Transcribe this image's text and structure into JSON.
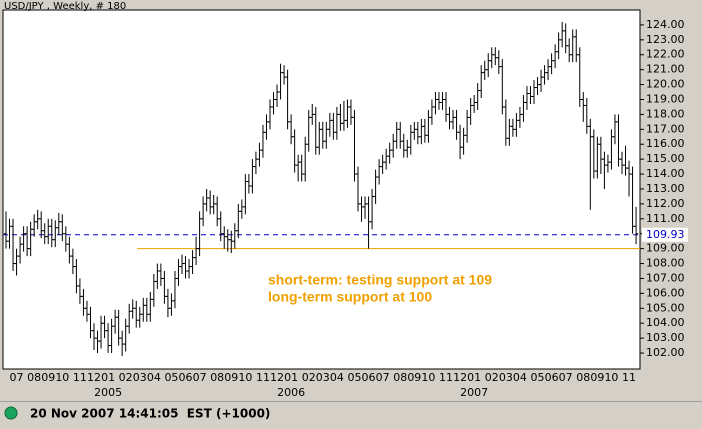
{
  "chart_data": {
    "type": "ohlc",
    "title": "USD/JPY , Weekly, # 180",
    "color": "#000000",
    "categories": [
      null,
      null,
      null,
      "07",
      null,
      null,
      null,
      null,
      "08",
      null,
      null,
      null,
      "09",
      null,
      null,
      null,
      "10",
      null,
      null,
      null,
      null,
      "11",
      null,
      null,
      null,
      "12",
      null,
      null,
      null,
      "01",
      null,
      null,
      null,
      null,
      "02",
      null,
      null,
      null,
      "03",
      null,
      null,
      null,
      "04",
      null,
      null,
      null,
      null,
      "05",
      null,
      null,
      null,
      "06",
      null,
      null,
      null,
      "07",
      null,
      null,
      null,
      null,
      "08",
      null,
      null,
      null,
      "09",
      null,
      null,
      null,
      "10",
      null,
      null,
      null,
      null,
      "11",
      null,
      null,
      null,
      "12",
      null,
      null,
      null,
      "01",
      null,
      null,
      null,
      null,
      "02",
      null,
      null,
      null,
      "03",
      null,
      null,
      null,
      "04",
      null,
      null,
      null,
      null,
      "05",
      null,
      null,
      null,
      "06",
      null,
      null,
      null,
      "07",
      null,
      null,
      null,
      null,
      "08",
      null,
      null,
      null,
      "09",
      null,
      null,
      null,
      "10",
      null,
      null,
      null,
      null,
      "11",
      null,
      null,
      null,
      "12",
      null,
      null,
      null,
      "01",
      null,
      null,
      null,
      null,
      "02",
      null,
      null,
      null,
      "03",
      null,
      null,
      null,
      "04",
      null,
      null,
      null,
      null,
      "05",
      null,
      null,
      null,
      "06",
      null,
      null,
      null,
      "07",
      null,
      null,
      null,
      null,
      "08",
      null,
      null,
      null,
      "09",
      null,
      null,
      null,
      "10",
      null,
      null,
      null,
      null,
      "11",
      null,
      null
    ],
    "years": [
      null,
      null,
      null,
      null,
      null,
      null,
      null,
      null,
      null,
      null,
      null,
      null,
      null,
      null,
      null,
      null,
      null,
      null,
      null,
      null,
      null,
      null,
      null,
      null,
      null,
      null,
      null,
      null,
      null,
      "2005",
      null,
      null,
      null,
      null,
      null,
      null,
      null,
      null,
      null,
      null,
      null,
      null,
      null,
      null,
      null,
      null,
      null,
      null,
      null,
      null,
      null,
      null,
      null,
      null,
      null,
      null,
      null,
      null,
      null,
      null,
      null,
      null,
      null,
      null,
      null,
      null,
      null,
      null,
      null,
      null,
      null,
      null,
      null,
      null,
      null,
      null,
      null,
      null,
      null,
      null,
      null,
      "2006",
      null,
      null,
      null,
      null,
      null,
      null,
      null,
      null,
      null,
      null,
      null,
      null,
      null,
      null,
      null,
      null,
      null,
      null,
      null,
      null,
      null,
      null,
      null,
      null,
      null,
      null,
      null,
      null,
      null,
      null,
      null,
      null,
      null,
      null,
      null,
      null,
      null,
      null,
      null,
      null,
      null,
      null,
      null,
      null,
      null,
      null,
      null,
      null,
      null,
      null,
      null,
      "2007",
      null,
      null,
      null,
      null,
      null,
      null,
      null,
      null,
      null,
      null,
      null,
      null,
      null,
      null,
      null,
      null,
      null,
      null,
      null,
      null,
      null,
      null,
      null,
      null,
      null,
      null,
      null,
      null,
      null,
      null,
      null,
      null,
      null,
      null,
      null,
      null,
      null,
      null,
      null,
      null,
      null,
      null,
      null,
      null,
      null,
      null
    ],
    "open": [
      110.0,
      109.5,
      110.5,
      108.0,
      108.5,
      109.3,
      110.0,
      109.0,
      110.3,
      110.8,
      111.0,
      110.2,
      109.8,
      110.5,
      109.6,
      110.4,
      110.8,
      110.0,
      109.3,
      108.5,
      107.8,
      106.5,
      105.8,
      105.0,
      104.6,
      103.5,
      103.0,
      102.8,
      104.0,
      103.5,
      102.5,
      103.8,
      104.4,
      103.0,
      102.6,
      103.8,
      104.8,
      105.0,
      104.2,
      104.6,
      105.2,
      104.6,
      105.6,
      106.8,
      107.5,
      107.0,
      105.8,
      105.0,
      105.5,
      107.0,
      107.8,
      108.0,
      107.5,
      107.8,
      108.4,
      109.0,
      111.0,
      112.0,
      112.4,
      111.8,
      112.0,
      111.0,
      110.0,
      109.8,
      109.6,
      109.5,
      110.2,
      111.5,
      111.8,
      113.5,
      113.2,
      114.5,
      115.0,
      115.6,
      116.8,
      117.5,
      118.5,
      119.0,
      119.5,
      120.8,
      120.5,
      117.5,
      116.5,
      114.6,
      114.8,
      114.0,
      116.0,
      117.8,
      118.0,
      115.8,
      117.0,
      116.2,
      117.0,
      117.6,
      116.8,
      118.0,
      117.4,
      117.6,
      118.5,
      117.8,
      114.0,
      112.0,
      111.8,
      112.0,
      110.8,
      112.5,
      113.8,
      114.5,
      114.8,
      115.2,
      115.6,
      116.2,
      117.0,
      116.2,
      115.6,
      115.8,
      116.8,
      117.0,
      116.5,
      117.2,
      116.6,
      117.8,
      118.5,
      119.0,
      118.8,
      119.0,
      118.0,
      117.5,
      117.8,
      116.8,
      115.8,
      116.6,
      117.8,
      118.6,
      118.8,
      119.6,
      120.8,
      121.0,
      121.6,
      122.0,
      121.8,
      121.2,
      118.5,
      116.4,
      117.2,
      117.0,
      117.6,
      118.0,
      118.8,
      119.4,
      119.2,
      119.8,
      120.0,
      120.5,
      120.8,
      121.2,
      121.6,
      122.2,
      123.0,
      123.6,
      122.6,
      122.0,
      123.2,
      122.0,
      119.0,
      118.6,
      117.2,
      116.5,
      114.2,
      116.0,
      115.0,
      114.6,
      114.8,
      116.5,
      117.5,
      115.0,
      114.6,
      114.4,
      114.0,
      110.5
    ],
    "high": [
      111.5,
      111.0,
      111.0,
      109.0,
      109.8,
      110.5,
      110.5,
      110.8,
      111.3,
      111.6,
      111.5,
      110.7,
      111.0,
      111.0,
      110.9,
      111.4,
      111.3,
      110.5,
      109.8,
      109.0,
      108.3,
      107.0,
      106.3,
      105.5,
      105.1,
      104.0,
      103.5,
      104.5,
      104.5,
      104.0,
      104.3,
      104.9,
      104.9,
      103.5,
      104.3,
      105.3,
      105.6,
      105.5,
      105.1,
      105.7,
      105.7,
      106.1,
      107.3,
      108.0,
      108.0,
      107.5,
      106.3,
      106.0,
      107.5,
      108.3,
      108.6,
      108.5,
      108.3,
      108.9,
      109.8,
      111.5,
      112.5,
      113.0,
      112.9,
      112.6,
      112.5,
      111.5,
      110.5,
      110.3,
      110.2,
      110.7,
      112.0,
      112.3,
      114.0,
      114.0,
      115.0,
      115.5,
      116.1,
      117.3,
      118.0,
      119.0,
      119.5,
      120.0,
      121.4,
      121.3,
      121.0,
      118.0,
      117.0,
      115.3,
      115.3,
      116.5,
      118.3,
      118.7,
      118.5,
      117.5,
      117.5,
      117.5,
      118.1,
      118.1,
      118.5,
      118.7,
      118.9,
      119.0,
      119.0,
      118.3,
      114.5,
      112.5,
      112.5,
      112.5,
      113.0,
      114.3,
      115.0,
      115.3,
      115.7,
      116.1,
      116.7,
      117.5,
      117.5,
      116.7,
      116.3,
      117.3,
      117.5,
      117.5,
      117.7,
      117.7,
      118.3,
      119.0,
      119.5,
      119.5,
      119.5,
      119.5,
      118.5,
      118.3,
      118.3,
      117.3,
      117.1,
      118.3,
      119.1,
      119.3,
      120.1,
      121.3,
      121.6,
      122.1,
      122.5,
      122.5,
      122.3,
      121.7,
      119.0,
      117.7,
      117.7,
      118.1,
      118.5,
      119.3,
      119.9,
      119.9,
      120.3,
      120.5,
      121.0,
      121.3,
      121.7,
      122.1,
      122.7,
      123.5,
      124.2,
      124.1,
      123.1,
      123.7,
      123.7,
      122.5,
      119.5,
      119.1,
      117.7,
      117.0,
      116.5,
      116.5,
      115.5,
      115.3,
      117.0,
      118.0,
      118.0,
      115.5,
      115.9,
      114.9,
      114.5,
      111.8
    ],
    "low": [
      109.0,
      109.0,
      107.5,
      107.2,
      108.0,
      108.8,
      108.5,
      108.5,
      109.8,
      110.3,
      109.7,
      109.3,
      109.3,
      109.1,
      109.1,
      109.9,
      109.5,
      108.8,
      108.0,
      107.3,
      106.0,
      105.3,
      104.5,
      104.1,
      103.0,
      102.2,
      102.0,
      102.3,
      103.0,
      102.0,
      102.0,
      103.3,
      102.5,
      101.8,
      102.1,
      103.3,
      104.3,
      103.7,
      103.7,
      104.1,
      104.1,
      104.1,
      105.1,
      106.3,
      106.5,
      105.3,
      104.4,
      104.5,
      105.0,
      106.5,
      107.3,
      107.0,
      107.0,
      107.3,
      107.9,
      108.5,
      110.5,
      111.5,
      111.3,
      111.3,
      110.5,
      109.5,
      109.0,
      108.8,
      108.7,
      109.0,
      109.7,
      111.0,
      111.3,
      112.7,
      112.7,
      114.0,
      114.5,
      115.1,
      116.3,
      117.0,
      118.0,
      118.5,
      119.0,
      120.0,
      117.0,
      116.0,
      114.1,
      113.5,
      113.5,
      113.5,
      115.5,
      117.3,
      115.3,
      115.3,
      115.7,
      115.7,
      116.5,
      116.3,
      116.3,
      116.9,
      116.9,
      117.1,
      117.3,
      113.5,
      111.5,
      110.8,
      111.0,
      109.0,
      110.3,
      112.0,
      113.3,
      114.0,
      114.3,
      114.7,
      115.1,
      115.7,
      115.7,
      115.1,
      115.1,
      115.3,
      116.3,
      116.0,
      116.0,
      116.1,
      116.1,
      117.3,
      118.0,
      118.3,
      118.3,
      117.5,
      117.0,
      117.0,
      116.3,
      115.0,
      115.3,
      116.1,
      117.3,
      118.1,
      118.3,
      119.1,
      120.3,
      120.5,
      121.1,
      121.3,
      120.7,
      118.0,
      115.9,
      115.9,
      116.5,
      116.5,
      117.1,
      117.5,
      118.3,
      118.7,
      118.7,
      119.3,
      119.5,
      120.0,
      120.3,
      120.7,
      121.1,
      121.7,
      122.5,
      122.1,
      121.5,
      121.5,
      121.5,
      118.5,
      117.5,
      116.7,
      111.6,
      113.7,
      113.7,
      114.0,
      113.0,
      114.1,
      114.3,
      116.0,
      114.5,
      114.0,
      113.9,
      112.5,
      110.0,
      109.3
    ],
    "close": [
      109.5,
      110.5,
      108.0,
      108.5,
      109.3,
      110.0,
      109.0,
      110.3,
      110.8,
      111.0,
      110.2,
      109.8,
      110.5,
      109.6,
      110.4,
      110.8,
      110.0,
      109.3,
      108.5,
      107.8,
      106.5,
      105.8,
      105.0,
      104.6,
      103.5,
      103.0,
      102.8,
      104.0,
      103.5,
      102.5,
      103.8,
      104.4,
      103.0,
      102.6,
      103.8,
      104.8,
      105.0,
      104.2,
      104.6,
      105.2,
      104.6,
      105.6,
      106.8,
      107.5,
      107.0,
      105.8,
      105.0,
      105.5,
      107.0,
      107.8,
      108.0,
      107.5,
      107.8,
      108.4,
      109.0,
      111.0,
      112.0,
      112.4,
      111.8,
      112.0,
      111.0,
      110.0,
      109.8,
      109.6,
      109.5,
      110.2,
      111.5,
      111.8,
      113.5,
      113.2,
      114.5,
      115.0,
      115.6,
      116.8,
      117.5,
      118.5,
      119.0,
      119.5,
      120.8,
      120.5,
      117.5,
      116.5,
      114.6,
      114.8,
      114.0,
      116.0,
      117.8,
      118.0,
      115.8,
      117.0,
      116.2,
      117.0,
      117.6,
      116.8,
      118.0,
      117.4,
      117.6,
      118.5,
      117.8,
      114.0,
      112.0,
      111.8,
      112.0,
      110.8,
      112.5,
      113.8,
      114.5,
      114.8,
      115.2,
      115.6,
      116.2,
      117.0,
      116.2,
      115.6,
      115.8,
      116.8,
      117.0,
      116.5,
      117.2,
      116.6,
      117.8,
      118.5,
      119.0,
      118.8,
      119.0,
      118.0,
      117.5,
      117.8,
      116.8,
      115.8,
      116.6,
      117.8,
      118.6,
      118.8,
      119.6,
      120.8,
      121.0,
      121.6,
      122.0,
      121.8,
      121.2,
      118.5,
      116.4,
      117.2,
      117.0,
      117.6,
      118.0,
      118.8,
      119.4,
      119.2,
      119.8,
      120.0,
      120.5,
      120.8,
      121.2,
      121.6,
      122.2,
      123.0,
      123.6,
      122.6,
      122.0,
      123.2,
      122.0,
      119.0,
      118.6,
      117.2,
      116.5,
      114.2,
      116.0,
      115.0,
      114.6,
      114.8,
      116.5,
      117.5,
      115.0,
      114.6,
      114.4,
      114.0,
      110.5,
      110.0
    ],
    "ylim": [
      100.93,
      125.0
    ],
    "yticks": [
      {
        "value": 102,
        "label": "102.00"
      },
      {
        "value": 103,
        "label": "103.00"
      },
      {
        "value": 104,
        "label": "104.00"
      },
      {
        "value": 105,
        "label": "105.00"
      },
      {
        "value": 106,
        "label": "106.00"
      },
      {
        "value": 107,
        "label": "107.00"
      },
      {
        "value": 108,
        "label": "108.00"
      },
      {
        "value": 109,
        "label": "109.00"
      },
      {
        "value": 110,
        "label": "110.00"
      },
      {
        "value": 111,
        "label": "111.00"
      },
      {
        "value": 112,
        "label": "112.00"
      },
      {
        "value": 113,
        "label": "113.00"
      },
      {
        "value": 114,
        "label": "114.00"
      },
      {
        "value": 115,
        "label": "115.00"
      },
      {
        "value": 116,
        "label": "116.00"
      },
      {
        "value": 117,
        "label": "117.00"
      },
      {
        "value": 118,
        "label": "118.00"
      },
      {
        "value": 119,
        "label": "119.00"
      },
      {
        "value": 120,
        "label": "120.00"
      },
      {
        "value": 121,
        "label": "121.00"
      },
      {
        "value": 122,
        "label": "122.00"
      },
      {
        "value": 123,
        "label": "123.00"
      },
      {
        "value": 124,
        "label": "124.00"
      }
    ],
    "grid": false,
    "reference_lines": [
      {
        "value": 109.93,
        "color": "#0000c8",
        "dashed": true,
        "labeled": true
      },
      {
        "value": 109,
        "color": "#f0a000",
        "dashed": false,
        "labeled": false
      }
    ],
    "annotations": [
      "short-term: testing support at 109",
      "long-term support at 100"
    ],
    "annotation_color": "#f0a000"
  },
  "status": "20 Nov 2007 14:41:05  EST (+1000)"
}
